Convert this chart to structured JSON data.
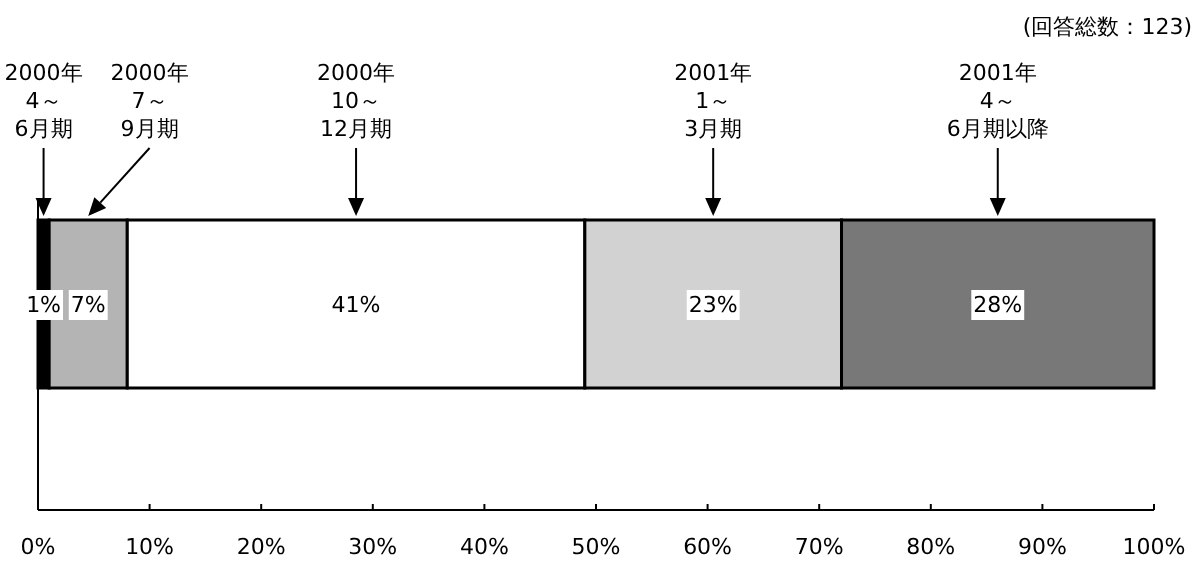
{
  "chart_data": {
    "type": "bar",
    "orientation": "horizontal",
    "stacked": true,
    "categories": [
      null
    ],
    "series": [
      {
        "color": "#000000",
        "values": [
          1
        ],
        "value_labels": [
          "1%"
        ]
      },
      {
        "color": "#b4b4b4",
        "values": [
          7
        ],
        "value_labels": [
          "7%"
        ]
      },
      {
        "color": "#ffffff",
        "values": [
          41
        ],
        "value_labels": [
          "41%"
        ]
      },
      {
        "color": "#d2d2d2",
        "values": [
          23
        ],
        "value_labels": [
          "23%"
        ]
      },
      {
        "color": "#787878",
        "values": [
          28
        ],
        "value_labels": [
          "28%"
        ]
      }
    ],
    "xlim": [
      0,
      100
    ],
    "xticks": [
      {
        "value": 0,
        "label": "0%"
      },
      {
        "value": 10,
        "label": "10%"
      },
      {
        "value": 20,
        "label": "20%"
      },
      {
        "value": 30,
        "label": "30%"
      },
      {
        "value": 40,
        "label": "40%"
      },
      {
        "value": 50,
        "label": "50%"
      },
      {
        "value": 60,
        "label": "60%"
      },
      {
        "value": 70,
        "label": "70%"
      },
      {
        "value": 80,
        "label": "80%"
      },
      {
        "value": 90,
        "label": "90%"
      },
      {
        "value": 100,
        "label": "100%"
      }
    ],
    "grid": false,
    "annotations": [
      "2000年4～6月期",
      "2000年7～9月期",
      "2000年10～12月期",
      "2001年1～3月期",
      "2001年4～6月期以降",
      "(回答総数：123)"
    ]
  }
}
